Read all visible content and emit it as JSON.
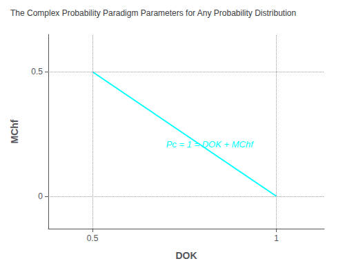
{
  "chart_data": {
    "type": "line",
    "title": "The Complex Probability Paradigm Parameters for Any Probability Distribution",
    "xlabel": "DOK",
    "ylabel": "MChf",
    "x": [
      0.5,
      1.0
    ],
    "values": [
      0.5,
      0.0
    ],
    "color": "#00ffff",
    "annotations": [
      {
        "text": "Pc = 1 = DOK + MChf",
        "x": 0.7,
        "y": 0.21
      }
    ],
    "xlim": [
      0.38,
      1.13
    ],
    "ylim": [
      -0.13,
      0.65
    ],
    "xticks": [
      0.5,
      1
    ],
    "yticks": [
      0,
      0.5
    ],
    "grid": true
  }
}
